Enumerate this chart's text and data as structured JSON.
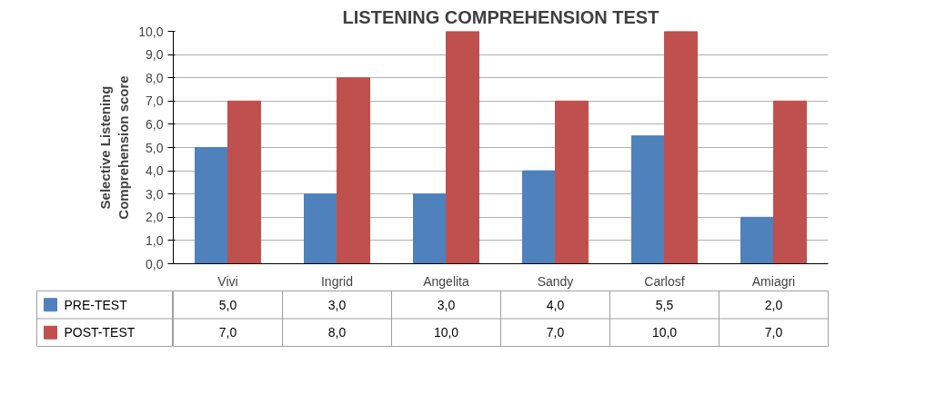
{
  "chart_data": {
    "type": "bar",
    "title": "LISTENING COMPREHENSION TEST",
    "ylabel": "Selective Listening\nComprehension score",
    "categories": [
      "Vivi",
      "Ingrid",
      "Angelita",
      "Sandy",
      "Carlosf",
      "Amiagri"
    ],
    "series": [
      {
        "name": "PRE-TEST",
        "color": "#4f81bd",
        "values": [
          5.0,
          3.0,
          3.0,
          4.0,
          5.5,
          2.0
        ],
        "value_labels": [
          "5,0",
          "3,0",
          "3,0",
          "4,0",
          "5,5",
          "2,0"
        ]
      },
      {
        "name": "POST-TEST",
        "color": "#c0504d",
        "values": [
          7.0,
          8.0,
          10.0,
          7.0,
          10.0,
          7.0
        ],
        "value_labels": [
          "7,0",
          "8,0",
          "10,0",
          "7,0",
          "10,0",
          "7,0"
        ]
      }
    ],
    "ylim": [
      0,
      10
    ],
    "yticks": [
      {
        "value": 0,
        "label": "0,0"
      },
      {
        "value": 1,
        "label": "1,0"
      },
      {
        "value": 2,
        "label": "2,0"
      },
      {
        "value": 3,
        "label": "3,0"
      },
      {
        "value": 4,
        "label": "4,0"
      },
      {
        "value": 5,
        "label": "5,0"
      },
      {
        "value": 6,
        "label": "6,0"
      },
      {
        "value": 7,
        "label": "7,0"
      },
      {
        "value": 8,
        "label": "8,0"
      },
      {
        "value": 9,
        "label": "9,0"
      },
      {
        "value": 10,
        "label": "10,0"
      }
    ],
    "grid": "y",
    "legend": "bottom"
  }
}
